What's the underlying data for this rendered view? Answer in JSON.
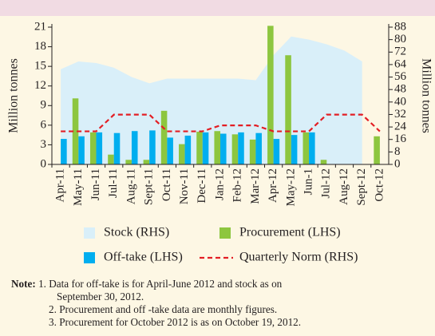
{
  "chart_data": {
    "type": "bar",
    "categories": [
      "Apr-11",
      "May-11",
      "Jun-11",
      "Jul-11",
      "Aug-11",
      "Sept-11",
      "Oct-11",
      "Nov-11",
      "Dec-11",
      "Jan-12",
      "Feb-12",
      "Mar-12",
      "Apr-12",
      "May-12",
      "Jun-1",
      "Jul-12",
      "Aug-12",
      "Sept-12",
      "Oct-12"
    ],
    "y_label": "Million tonnes",
    "y2_label": "Million tonnes",
    "ylim": [
      0,
      21
    ],
    "yticks": [
      0,
      3,
      6,
      9,
      12,
      15,
      18,
      21
    ],
    "y2lim": [
      0,
      88
    ],
    "y2ticks": [
      0,
      8,
      16,
      24,
      32,
      40,
      48,
      56,
      64,
      72,
      80,
      88
    ],
    "series": [
      {
        "name": "Stock (RHS)",
        "type": "area",
        "axis": "y2",
        "color": "#d9eff9",
        "values": [
          61,
          66,
          65,
          62,
          56,
          52,
          55,
          55,
          55,
          55,
          55,
          54,
          70,
          82,
          80,
          77,
          73,
          66,
          null
        ]
      },
      {
        "name": "Procurement (LHS)",
        "type": "bar",
        "color": "#8dc63f",
        "values": [
          0,
          10.1,
          4.9,
          1.5,
          0.7,
          0.7,
          8.2,
          3.1,
          5.0,
          5.1,
          4.6,
          3.8,
          21.2,
          16.7,
          4.9,
          0.7,
          0,
          0,
          4.3
        ]
      },
      {
        "name": "Off-take (LHS)",
        "type": "bar",
        "color": "#00aeef",
        "values": [
          3.9,
          4.3,
          4.9,
          4.8,
          5.1,
          5.2,
          4.1,
          4.4,
          4.9,
          4.7,
          4.9,
          4.8,
          3.9,
          4.5,
          4.9,
          null,
          null,
          null,
          null
        ]
      },
      {
        "name": "Quarterly Norm (RHS)",
        "type": "line",
        "axis": "y2",
        "color": "#e31e24",
        "values": [
          21.2,
          21.2,
          21.2,
          31.9,
          31.9,
          31.9,
          21.2,
          21.2,
          21.2,
          25,
          25,
          25,
          21.2,
          21.2,
          21.2,
          31.9,
          31.9,
          31.9,
          21.2
        ]
      }
    ]
  },
  "note": {
    "label": "Note:",
    "lines": [
      "1. Data for off-take is for April-June 2012 and stock as on",
      "September  30, 2012.",
      "2. Procurement and off -take data are monthly figures.",
      "3. Procurement for  October 2012 is as on October 19, 2012."
    ]
  }
}
